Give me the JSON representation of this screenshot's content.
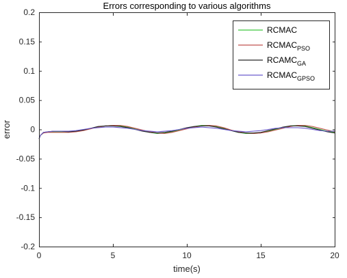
{
  "chart_data": {
    "type": "line",
    "title": "Errors corresponding to various algorithms",
    "xlabel": "time(s)",
    "ylabel": "error",
    "xlim": [
      0,
      20
    ],
    "ylim": [
      -0.2,
      0.2
    ],
    "xticks": [
      "0",
      "5",
      "10",
      "15",
      "20"
    ],
    "yticks": [
      "-0.2",
      "-0.15",
      "-0.1",
      "-0.05",
      "0",
      "0.05",
      "0.1",
      "0.15",
      "0.2"
    ],
    "grid": false,
    "legend_position": "top-right",
    "x": [
      0,
      0.1,
      0.3,
      0.6,
      1,
      1.5,
      2,
      2.5,
      3,
      3.5,
      4,
      4.5,
      5,
      5.5,
      6,
      6.5,
      7,
      7.5,
      8,
      8.5,
      9,
      9.5,
      10,
      10.5,
      11,
      11.5,
      12,
      12.5,
      13,
      13.5,
      14,
      14.5,
      15,
      15.5,
      16,
      16.5,
      17,
      17.5,
      18,
      18.5,
      19,
      19.5,
      20
    ],
    "series": [
      {
        "name": "RCMAC",
        "color": "#3cc83c",
        "values": [
          -0.016,
          -0.01,
          -0.006,
          -0.004,
          -0.004,
          -0.004,
          -0.004,
          -0.003,
          -0.001,
          0.002,
          0.004,
          0.006,
          0.007,
          0.006,
          0.004,
          0.001,
          -0.002,
          -0.005,
          -0.007,
          -0.006,
          -0.004,
          -0.001,
          0.002,
          0.005,
          0.007,
          0.007,
          0.005,
          0.002,
          -0.002,
          -0.005,
          -0.007,
          -0.007,
          -0.006,
          -0.003,
          0.0,
          0.003,
          0.006,
          0.007,
          0.006,
          0.003,
          0.0,
          -0.003,
          -0.005
        ]
      },
      {
        "name": "RCMAC",
        "name_subscript": "PSO",
        "color": "#c0504d",
        "values": [
          -0.016,
          -0.01,
          -0.006,
          -0.005,
          -0.005,
          -0.005,
          -0.005,
          -0.004,
          -0.002,
          0.001,
          0.004,
          0.006,
          0.007,
          0.007,
          0.005,
          0.002,
          -0.001,
          -0.004,
          -0.006,
          -0.007,
          -0.005,
          -0.002,
          0.001,
          0.004,
          0.006,
          0.007,
          0.006,
          0.003,
          -0.001,
          -0.004,
          -0.006,
          -0.007,
          -0.006,
          -0.004,
          -0.001,
          0.002,
          0.005,
          0.007,
          0.007,
          0.005,
          0.002,
          -0.001,
          -0.004
        ]
      },
      {
        "name": "RCAMC",
        "name_subscript": "GA",
        "color": "#262626",
        "values": [
          -0.016,
          -0.01,
          -0.005,
          -0.004,
          -0.003,
          -0.003,
          -0.004,
          -0.003,
          -0.001,
          0.002,
          0.005,
          0.006,
          0.006,
          0.005,
          0.003,
          0.0,
          -0.003,
          -0.005,
          -0.006,
          -0.005,
          -0.003,
          0.0,
          0.003,
          0.005,
          0.006,
          0.006,
          0.004,
          0.001,
          -0.002,
          -0.005,
          -0.006,
          -0.006,
          -0.005,
          -0.002,
          0.001,
          0.004,
          0.006,
          0.006,
          0.005,
          0.002,
          -0.001,
          -0.004,
          -0.006
        ]
      },
      {
        "name": "RCMAC",
        "name_subscript": "GPSO",
        "color": "#6a5acd",
        "values": [
          -0.016,
          -0.01,
          -0.005,
          -0.004,
          -0.003,
          -0.003,
          -0.003,
          -0.002,
          0.0,
          0.002,
          0.003,
          0.004,
          0.004,
          0.003,
          0.002,
          0.0,
          -0.002,
          -0.003,
          -0.004,
          -0.003,
          -0.002,
          0.0,
          0.002,
          0.003,
          0.004,
          0.003,
          0.002,
          0.0,
          -0.002,
          -0.003,
          -0.004,
          -0.003,
          -0.002,
          0.0,
          0.002,
          0.003,
          0.003,
          0.003,
          0.002,
          0.0,
          -0.002,
          -0.003,
          -0.003
        ]
      }
    ]
  }
}
